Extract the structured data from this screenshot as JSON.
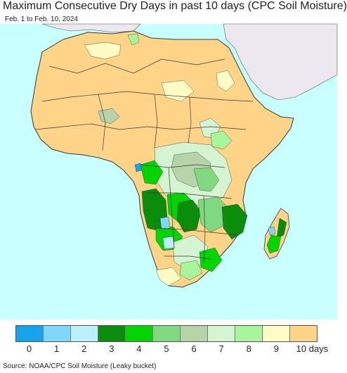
{
  "title": "Maximum Consecutive Dry Days in past 10 days (CPC Soil Moisture)",
  "subtitle": "Feb. 1 to Feb. 10, 2024",
  "source": "Source: NOAA/CPC Soil Moisture (Leaky bucket)",
  "colors": {
    "ocean": "#c8ffff",
    "other_land": "#ede8ef",
    "border": "#3a3a3a"
  },
  "legend": {
    "items": [
      {
        "label": "0",
        "color": "#15a3ee"
      },
      {
        "label": "1",
        "color": "#7ed8fb"
      },
      {
        "label": "2",
        "color": "#bcf0fd"
      },
      {
        "label": "3",
        "color": "#0b8c0b"
      },
      {
        "label": "4",
        "color": "#04d404"
      },
      {
        "label": "5",
        "color": "#80d880"
      },
      {
        "label": "6",
        "color": "#b6d4a8"
      },
      {
        "label": "7",
        "color": "#d4f4d2"
      },
      {
        "label": "8",
        "color": "#a8f59c"
      },
      {
        "label": "9",
        "color": "#fcfcc4"
      },
      {
        "label": "10 days",
        "color": "#fdd488"
      }
    ]
  }
}
